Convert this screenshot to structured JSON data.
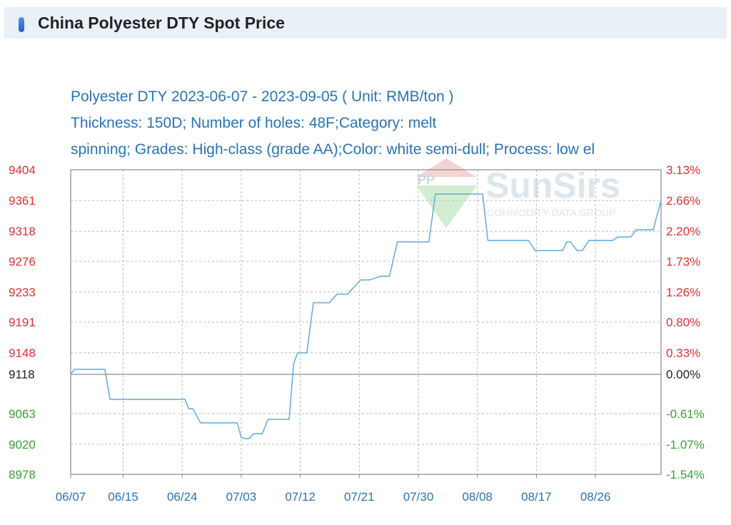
{
  "header": {
    "title": "China Polyester DTY Spot Price"
  },
  "subtitle": {
    "line1": "Polyester DTY 2023-06-07 - 2023-09-05     ( Unit: RMB/ton )",
    "line2": "Thickness: 150D; Number of holes: 48F;Category: melt",
    "line3": "spinning; Grades: High-class (grade AA);Color: white semi-dull; Process: low el"
  },
  "watermark": {
    "brand": "SunSirs",
    "tagline": "COMMODITY DATA GROUP"
  },
  "colors": {
    "line": "#6aaee0",
    "up": "#e03030",
    "down": "#3aa03a",
    "base": "#222222",
    "grid": "#bbbbbb",
    "axis": "#888888"
  },
  "chart_data": {
    "type": "line",
    "title": "Polyester DTY 2023-06-07 - 2023-09-05",
    "unit": "( Unit: RMB/ton )",
    "base_value": 9118,
    "ylim": [
      8978,
      9404
    ],
    "y_ticks_left": [
      {
        "value": 9404,
        "label": "9404",
        "dir": "up"
      },
      {
        "value": 9361,
        "label": "9361",
        "dir": "up"
      },
      {
        "value": 9318,
        "label": "9318",
        "dir": "up"
      },
      {
        "value": 9276,
        "label": "9276",
        "dir": "up"
      },
      {
        "value": 9233,
        "label": "9233",
        "dir": "up"
      },
      {
        "value": 9191,
        "label": "9191",
        "dir": "up"
      },
      {
        "value": 9148,
        "label": "9148",
        "dir": "up"
      },
      {
        "value": 9118,
        "label": "9118",
        "dir": "base"
      },
      {
        "value": 9063,
        "label": "9063",
        "dir": "down"
      },
      {
        "value": 9020,
        "label": "9020",
        "dir": "down"
      },
      {
        "value": 8978,
        "label": "8978",
        "dir": "down"
      }
    ],
    "y_ticks_right": [
      "3.13%",
      "2.66%",
      "2.20%",
      "1.73%",
      "1.26%",
      "0.80%",
      "0.33%",
      "0.00%",
      "-0.61%",
      "-1.07%",
      "-1.54%"
    ],
    "x_ticks": [
      {
        "day": 0,
        "label": "06/07"
      },
      {
        "day": 8,
        "label": "06/15"
      },
      {
        "day": 17,
        "label": "06/24"
      },
      {
        "day": 26,
        "label": "07/03"
      },
      {
        "day": 35,
        "label": "07/12"
      },
      {
        "day": 44,
        "label": "07/21"
      },
      {
        "day": 53,
        "label": "07/30"
      },
      {
        "day": 62,
        "label": "08/08"
      },
      {
        "day": 71,
        "label": "08/17"
      },
      {
        "day": 80,
        "label": "08/26"
      }
    ],
    "x_range": [
      0,
      90
    ],
    "grid": true,
    "series": [
      {
        "color": "#6aaee0",
        "points": [
          [
            0,
            9118
          ],
          [
            0.6,
            9125
          ],
          [
            1,
            9125
          ],
          [
            5.2,
            9125
          ],
          [
            6,
            9083
          ],
          [
            17.4,
            9083
          ],
          [
            18,
            9070
          ],
          [
            18.6,
            9070
          ],
          [
            19.8,
            9050
          ],
          [
            25.4,
            9050
          ],
          [
            26,
            9030
          ],
          [
            26.5,
            9028
          ],
          [
            27.2,
            9028
          ],
          [
            27.9,
            9035
          ],
          [
            29.2,
            9035
          ],
          [
            30.1,
            9055
          ],
          [
            33.3,
            9055
          ],
          [
            34,
            9133
          ],
          [
            34.6,
            9148
          ],
          [
            36,
            9148
          ],
          [
            37,
            9218
          ],
          [
            39.4,
            9218
          ],
          [
            40.6,
            9230
          ],
          [
            42.2,
            9230
          ],
          [
            44.2,
            9250
          ],
          [
            45.6,
            9250
          ],
          [
            47.2,
            9255
          ],
          [
            48.6,
            9255
          ],
          [
            49.8,
            9303
          ],
          [
            54.6,
            9303
          ],
          [
            55.6,
            9370
          ],
          [
            62.8,
            9370
          ],
          [
            63.6,
            9305
          ],
          [
            69.8,
            9305
          ],
          [
            70.8,
            9291
          ],
          [
            75,
            9291
          ],
          [
            75.6,
            9303
          ],
          [
            76.2,
            9303
          ],
          [
            77.2,
            9291
          ],
          [
            78,
            9291
          ],
          [
            79,
            9305
          ],
          [
            82.6,
            9305
          ],
          [
            83.4,
            9310
          ],
          [
            85.4,
            9310
          ],
          [
            86.2,
            9320
          ],
          [
            88.8,
            9320
          ],
          [
            90,
            9361
          ]
        ]
      }
    ]
  }
}
